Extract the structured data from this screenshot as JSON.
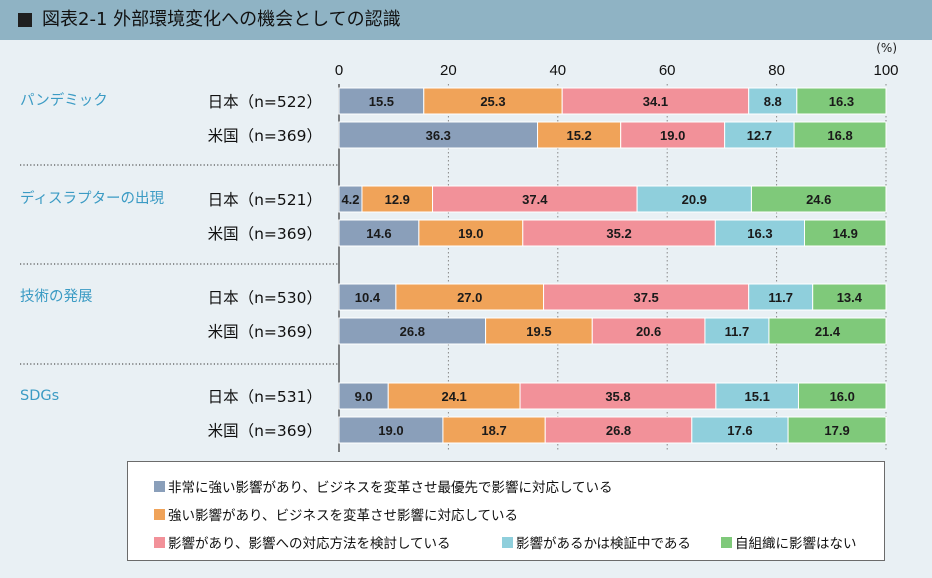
{
  "title": "図表2-1 外部環境変化への機会としての認識",
  "chart_data": {
    "type": "bar",
    "orientation": "horizontal",
    "stacked": true,
    "unit": "(%)",
    "xlim": [
      0,
      100
    ],
    "xticks": [
      0,
      20,
      40,
      60,
      80,
      100
    ],
    "grid": "dotted vertical",
    "legend_position": "bottom",
    "series": [
      {
        "name": "非常に強い影響があり、ビジネスを変革させ最優先で影響に対応している",
        "color": "#8a9fba"
      },
      {
        "name": "強い影響があり、ビジネスを変革させ影響に対応している",
        "color": "#f0a359"
      },
      {
        "name": "影響があり、影響への対応方法を検討している",
        "color": "#f29199"
      },
      {
        "name": "影響があるかは検証中である",
        "color": "#8fcfdc"
      },
      {
        "name": "自組織に影響はない",
        "color": "#7fc97a"
      }
    ],
    "groups": [
      {
        "name": "パンデミック",
        "rows": [
          {
            "label": "日本（n=522）",
            "values": [
              15.5,
              25.3,
              34.1,
              8.8,
              16.3
            ]
          },
          {
            "label": "米国（n=369）",
            "values": [
              36.3,
              15.2,
              19.0,
              12.7,
              16.8
            ]
          }
        ]
      },
      {
        "name": "ディスラプターの出現",
        "rows": [
          {
            "label": "日本（n=521）",
            "values": [
              4.2,
              12.9,
              37.4,
              20.9,
              24.6
            ]
          },
          {
            "label": "米国（n=369）",
            "values": [
              14.6,
              19.0,
              35.2,
              16.3,
              14.9
            ]
          }
        ]
      },
      {
        "name": "技術の発展",
        "rows": [
          {
            "label": "日本（n=530）",
            "values": [
              10.4,
              27.0,
              37.5,
              11.7,
              13.4
            ]
          },
          {
            "label": "米国（n=369）",
            "values": [
              26.8,
              19.5,
              20.6,
              11.7,
              21.4
            ]
          }
        ]
      },
      {
        "name": "SDGs",
        "rows": [
          {
            "label": "日本（n=531）",
            "values": [
              9.0,
              24.1,
              35.8,
              15.1,
              16.0
            ]
          },
          {
            "label": "米国（n=369）",
            "values": [
              19.0,
              18.7,
              26.8,
              17.6,
              17.9
            ]
          }
        ]
      }
    ]
  }
}
